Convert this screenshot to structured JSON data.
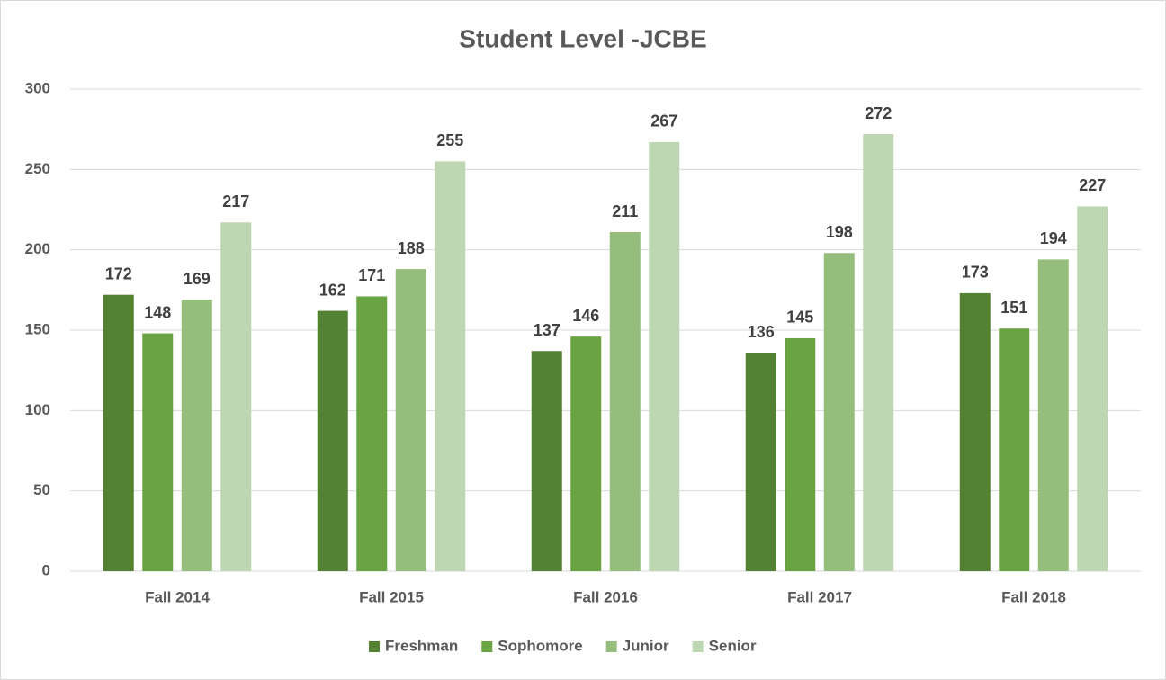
{
  "chart_data": {
    "type": "bar",
    "title": "Student Level -JCBE",
    "categories": [
      "Fall 2014",
      "Fall 2015",
      "Fall 2016",
      "Fall 2017",
      "Fall 2018"
    ],
    "series": [
      {
        "name": "Freshman",
        "color": "#548235",
        "values": [
          172,
          162,
          137,
          136,
          173
        ]
      },
      {
        "name": "Sophomore",
        "color": "#6aa442",
        "values": [
          148,
          171,
          146,
          145,
          151
        ]
      },
      {
        "name": "Junior",
        "color": "#95be7c",
        "values": [
          169,
          188,
          211,
          198,
          194
        ]
      },
      {
        "name": "Senior",
        "color": "#bed7b3",
        "values": [
          217,
          255,
          267,
          272,
          227
        ]
      }
    ],
    "ylim": [
      0,
      300
    ],
    "yticks": [
      0,
      50,
      100,
      150,
      200,
      250,
      300
    ],
    "grid": true,
    "legend": "bottom"
  }
}
